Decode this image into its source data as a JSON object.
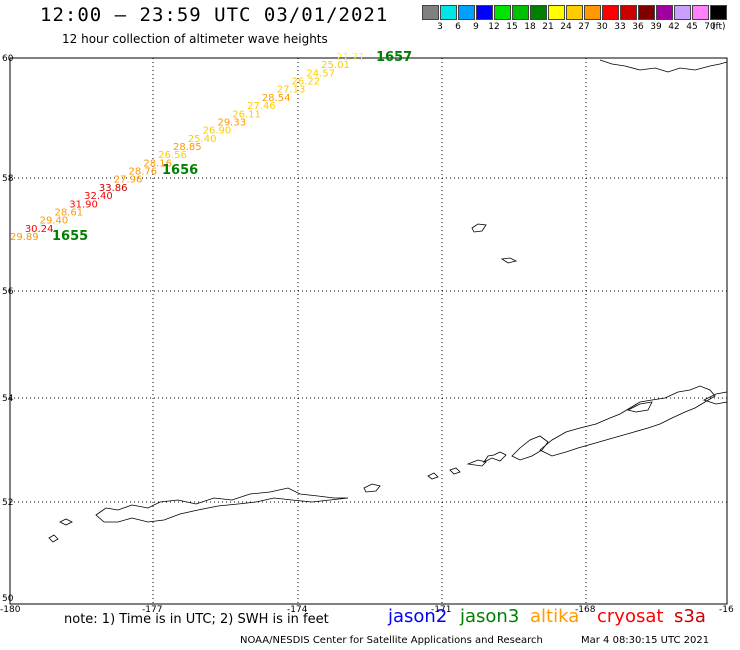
{
  "header": {
    "title": "12:00 – 23:59 UTC 03/01/2021",
    "subtitle": "12 hour collection of altimeter wave heights"
  },
  "legend": {
    "unit": "(ft)",
    "items": [
      {
        "label": "3",
        "color": "#808080"
      },
      {
        "label": "6",
        "color": "#00e5e5"
      },
      {
        "label": "9",
        "color": "#00a0ff"
      },
      {
        "label": "12",
        "color": "#0000ff"
      },
      {
        "label": "15",
        "color": "#00e500"
      },
      {
        "label": "18",
        "color": "#00c000"
      },
      {
        "label": "21",
        "color": "#008000"
      },
      {
        "label": "24",
        "color": "#ffff00"
      },
      {
        "label": "27",
        "color": "#ffcc00"
      },
      {
        "label": "30",
        "color": "#ff9900"
      },
      {
        "label": "33",
        "color": "#ff0000"
      },
      {
        "label": "36",
        "color": "#cc0000"
      },
      {
        "label": "39",
        "color": "#800000"
      },
      {
        "label": "42",
        "color": "#a000a0"
      },
      {
        "label": "45",
        "color": "#c8a0ff"
      },
      {
        "label": "70",
        "color": "#ff80ff"
      },
      {
        "label": "",
        "color": "#000000"
      }
    ]
  },
  "axes": {
    "lat_labels": [
      "60",
      "58",
      "56",
      "54",
      "52",
      "50"
    ],
    "lon_labels": [
      "-180",
      "-177",
      "-174",
      "-171",
      "-168",
      "-16"
    ]
  },
  "track": {
    "time_labels": [
      {
        "text": "1655",
        "color": "#008000"
      },
      {
        "text": "1656",
        "color": "#008000"
      },
      {
        "text": "1657",
        "color": "#008000"
      }
    ],
    "points": [
      {
        "v": "29.89",
        "color": "#ff9900"
      },
      {
        "v": "30.24",
        "color": "#ff0000"
      },
      {
        "v": "29.40",
        "color": "#ff9900"
      },
      {
        "v": "28.61",
        "color": "#ff9900"
      },
      {
        "v": "31.90",
        "color": "#ff0000"
      },
      {
        "v": "32.40",
        "color": "#ff0000"
      },
      {
        "v": "33.86",
        "color": "#cc0000"
      },
      {
        "v": "27.96",
        "color": "#ff9900"
      },
      {
        "v": "28.76",
        "color": "#ff9900"
      },
      {
        "v": "28.16",
        "color": "#ff9900"
      },
      {
        "v": "26.56",
        "color": "#ffcc00"
      },
      {
        "v": "28.85",
        "color": "#ff9900"
      },
      {
        "v": "25.40",
        "color": "#ffcc00"
      },
      {
        "v": "26.90",
        "color": "#ffcc00"
      },
      {
        "v": "29.33",
        "color": "#ff9900"
      },
      {
        "v": "26.11",
        "color": "#ffcc00"
      },
      {
        "v": "27.46",
        "color": "#ffcc00"
      },
      {
        "v": "28.54",
        "color": "#ff9900"
      },
      {
        "v": "27.13",
        "color": "#ffcc00"
      },
      {
        "v": "26.22",
        "color": "#ffcc00"
      },
      {
        "v": "24.57",
        "color": "#ffcc00"
      },
      {
        "v": "25.01",
        "color": "#ffcc00"
      },
      {
        "v": "21.71",
        "color": "#ffff00"
      }
    ]
  },
  "footer": {
    "note": "note:  1) Time is in UTC;  2) SWH is in feet",
    "satellites": [
      {
        "name": "jason2",
        "color": "#0000ff"
      },
      {
        "name": "jason3",
        "color": "#008000"
      },
      {
        "name": "altika",
        "color": "#ff9900"
      },
      {
        "name": "cryosat",
        "color": "#ff0000"
      },
      {
        "name": "s3a",
        "color": "#cc0000"
      }
    ],
    "credit": "NOAA/NESDIS Center for Satellite Applications and Research",
    "timestamp": "Mar  4 08:30:15 UTC 2021"
  }
}
